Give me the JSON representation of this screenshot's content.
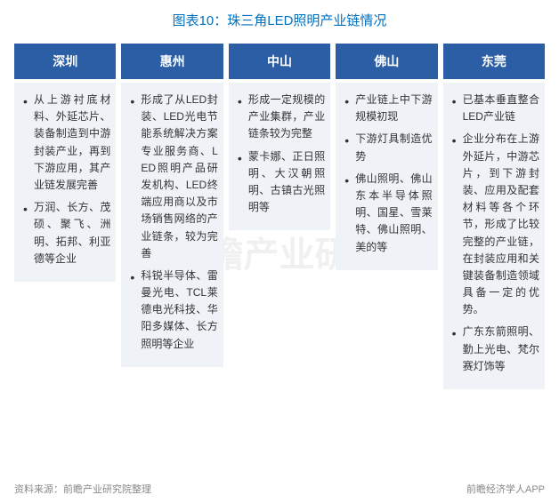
{
  "title": "图表10：珠三角LED照明产业链情况",
  "watermark": "@前瞻产业研究院",
  "colors": {
    "header_bg": "#2b5ea4",
    "header_text": "#ffffff",
    "body_bg": "#eff3f8",
    "body_text": "#333333",
    "title_color": "#0070c0",
    "footer_color": "#888888",
    "page_bg": "#ffffff"
  },
  "columns": [
    {
      "name": "深圳",
      "items": [
        "从上游衬底材料、外延芯片、装备制造到中游封装产业，再到下游应用，其产业链发展完善",
        "万润、长方、茂硕、聚飞、洲明、拓邦、利亚德等企业"
      ]
    },
    {
      "name": "惠州",
      "items": [
        "形成了从LED封装、LED光电节能系统解决方案专业服务商、LED照明产品研发机构、LED终端应用商以及市场销售网络的产业链条，较为完善",
        "科锐半导体、雷曼光电、TCL莱德电光科技、华阳多媒体、长方照明等企业"
      ]
    },
    {
      "name": "中山",
      "items": [
        "形成一定规模的产业集群，产业链条较为完整",
        "蒙卡娜、正日照明、大汉朝照明、古镇古光照明等"
      ]
    },
    {
      "name": "佛山",
      "items": [
        "产业链上中下游规模初现",
        "下游灯具制造优势",
        "佛山照明、佛山东本半导体照明、国星、雪莱特、佛山照明、美的等"
      ]
    },
    {
      "name": "东莞",
      "items": [
        "已基本垂直整合LED产业链",
        "企业分布在上游外延片，中游芯片，到下游封装、应用及配套材料等各个环节，形成了比较完整的产业链，在封装应用和关键装备制造领域具备一定的优势。",
        "广东东箭照明、勤上光电、梵尔赛灯饰等"
      ]
    }
  ],
  "footer_left": "资料来源：前瞻产业研究院整理",
  "footer_right": "前瞻经济学人APP"
}
